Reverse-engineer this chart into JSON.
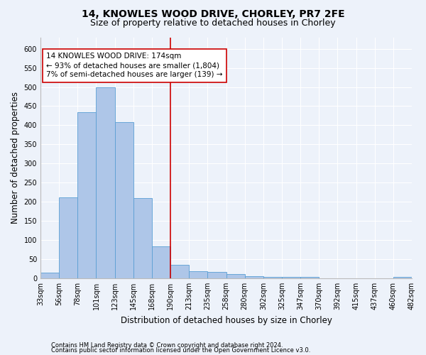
{
  "title1": "14, KNOWLES WOOD DRIVE, CHORLEY, PR7 2FE",
  "title2": "Size of property relative to detached houses in Chorley",
  "xlabel": "Distribution of detached houses by size in Chorley",
  "ylabel": "Number of detached properties",
  "footer1": "Contains HM Land Registry data © Crown copyright and database right 2024.",
  "footer2": "Contains public sector information licensed under the Open Government Licence v3.0.",
  "bin_labels": [
    "33sqm",
    "56sqm",
    "78sqm",
    "101sqm",
    "123sqm",
    "145sqm",
    "168sqm",
    "190sqm",
    "213sqm",
    "235sqm",
    "258sqm",
    "280sqm",
    "302sqm",
    "325sqm",
    "347sqm",
    "370sqm",
    "392sqm",
    "415sqm",
    "437sqm",
    "460sqm",
    "482sqm"
  ],
  "bar_values": [
    15,
    212,
    435,
    500,
    408,
    209,
    83,
    36,
    19,
    16,
    11,
    5,
    4,
    4,
    4,
    0,
    0,
    0,
    0,
    4
  ],
  "bar_color": "#aec6e8",
  "bar_edge_color": "#5a9fd4",
  "vline_x_index": 7,
  "vline_color": "#cc0000",
  "annotation_text": "14 KNOWLES WOOD DRIVE: 174sqm\n← 93% of detached houses are smaller (1,804)\n7% of semi-detached houses are larger (139) →",
  "annotation_box_color": "#cc0000",
  "ylim": [
    0,
    630
  ],
  "yticks": [
    0,
    50,
    100,
    150,
    200,
    250,
    300,
    350,
    400,
    450,
    500,
    550,
    600
  ],
  "background_color": "#edf2fa",
  "grid_color": "#ffffff",
  "title_fontsize": 10,
  "subtitle_fontsize": 9,
  "axis_label_fontsize": 8.5,
  "tick_fontsize": 7,
  "annotation_fontsize": 7.5,
  "footer_fontsize": 6
}
